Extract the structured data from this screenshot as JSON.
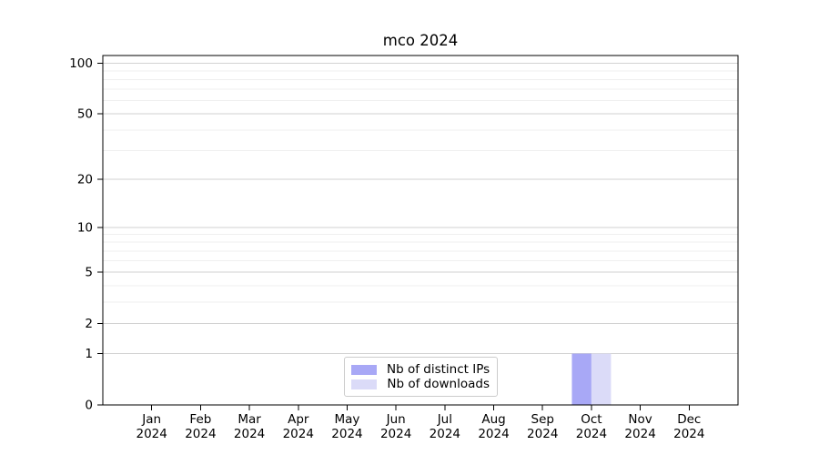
{
  "chart_data": {
    "type": "bar",
    "title": "mco 2024",
    "categories": [
      "Jan 2024",
      "Feb 2024",
      "Mar 2024",
      "Apr 2024",
      "May 2024",
      "Jun 2024",
      "Jul 2024",
      "Aug 2024",
      "Sep 2024",
      "Oct 2024",
      "Nov 2024",
      "Dec 2024"
    ],
    "series": [
      {
        "name": "Nb of distinct IPs",
        "color": "#a8a8f6",
        "values": [
          0,
          0,
          0,
          0,
          0,
          0,
          0,
          0,
          0,
          1,
          0,
          0
        ]
      },
      {
        "name": "Nb of downloads",
        "color": "#dbdbf8",
        "values": [
          0,
          0,
          0,
          0,
          0,
          0,
          0,
          0,
          0,
          1,
          0,
          0
        ]
      }
    ],
    "xlabel": "",
    "ylabel": "",
    "y_axis": {
      "scale": "log1p",
      "tick_values": [
        0,
        1,
        2,
        5,
        10,
        20,
        50,
        100
      ],
      "minor_gridline_values": [
        3,
        4,
        6,
        7,
        8,
        9,
        30,
        40,
        60,
        70,
        80,
        90
      ],
      "ymax": 111,
      "grid": true
    },
    "legend": {
      "location": "lower center",
      "entries": [
        "Nb of distinct IPs",
        "Nb of downloads"
      ]
    },
    "colors": {
      "major_grid": "#d2d2d2",
      "minor_grid": "#efefef",
      "axis": "#000000",
      "text": "#000000"
    }
  }
}
